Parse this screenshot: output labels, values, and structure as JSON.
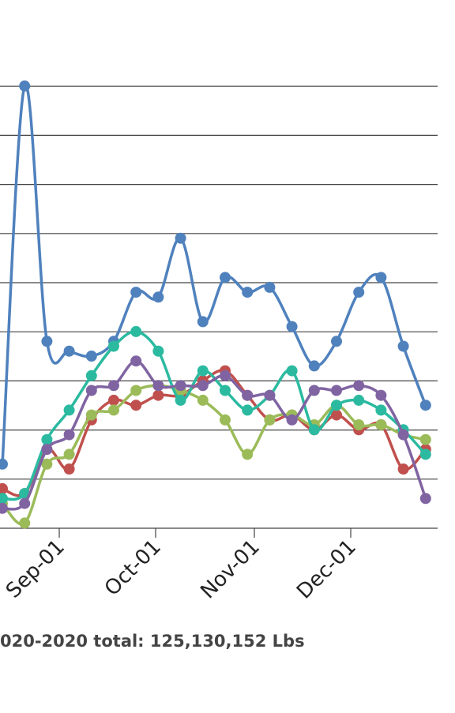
{
  "footer": {
    "total_text": "020-2020 total: 125,130,152 Lbs"
  },
  "chart_data": {
    "type": "line",
    "x_tick_labels": [
      "Sep-01",
      "Oct-01",
      "Nov-01",
      "Dec-01"
    ],
    "grid": true,
    "colors": [
      "#4f81bd",
      "#c0504d",
      "#9bbb59",
      "#2bbaa0",
      "#8064a2"
    ],
    "series": [
      {
        "values": [
          7.0,
          14.7,
          9.5,
          9.3,
          9.2,
          9.5,
          10.5,
          10.4,
          11.6,
          9.9,
          10.8,
          10.5,
          10.6,
          9.8,
          9.0,
          9.5,
          10.5,
          10.8,
          9.4,
          8.2
        ]
      },
      {
        "values": [
          6.5,
          6.4,
          7.3,
          6.9,
          7.9,
          8.3,
          8.2,
          8.4,
          8.4,
          8.7,
          8.9,
          8.4,
          7.9,
          8.0,
          7.7,
          8.0,
          7.7,
          7.8,
          6.9,
          7.3
        ]
      },
      {
        "values": [
          6.2,
          5.8,
          7.0,
          7.2,
          8.0,
          8.1,
          8.5,
          8.6,
          8.5,
          8.3,
          7.9,
          7.2,
          7.9,
          8.0,
          7.8,
          8.2,
          7.8,
          7.8,
          7.6,
          7.5
        ]
      },
      {
        "values": [
          6.3,
          6.4,
          7.5,
          8.1,
          8.8,
          9.4,
          9.7,
          9.3,
          8.3,
          8.9,
          8.5,
          8.1,
          8.4,
          8.9,
          7.7,
          8.2,
          8.3,
          8.1,
          7.7,
          7.2
        ]
      },
      {
        "values": [
          6.1,
          6.2,
          7.3,
          7.6,
          8.5,
          8.6,
          9.1,
          8.6,
          8.6,
          8.6,
          8.8,
          8.4,
          8.4,
          7.9,
          8.5,
          8.5,
          8.6,
          8.4,
          7.6,
          6.3
        ]
      }
    ]
  }
}
